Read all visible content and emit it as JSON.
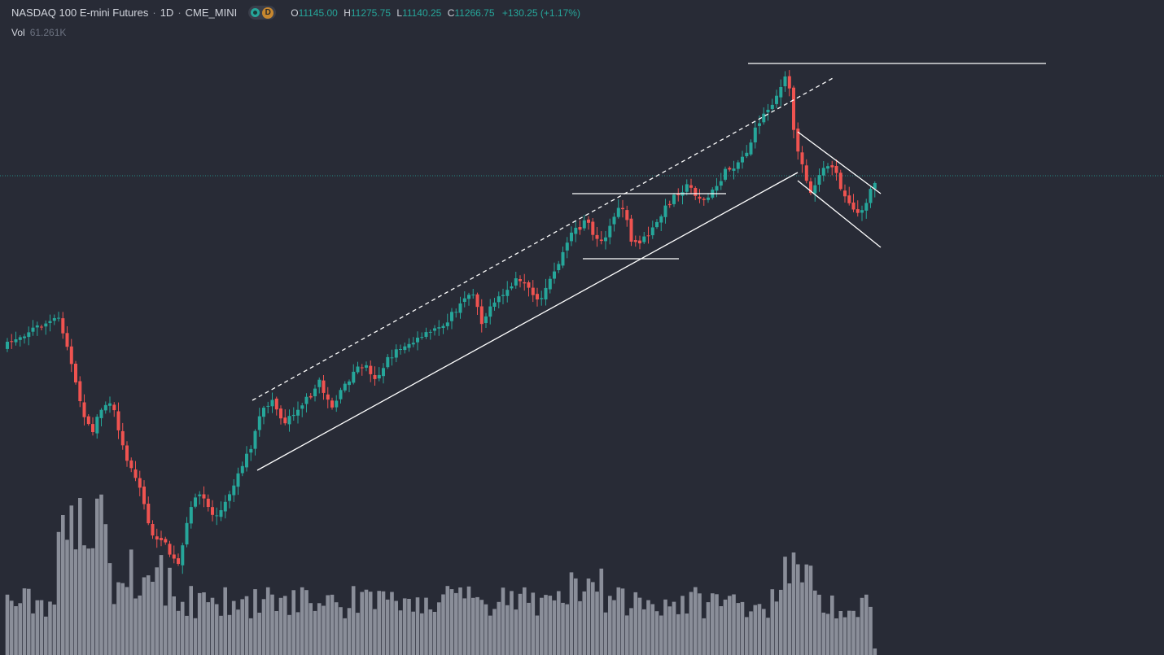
{
  "header": {
    "symbol": "NASDAQ 100 E-mini Futures",
    "interval": "1D",
    "exchange": "CME_MINI",
    "badge_letter": "D",
    "open_key": "O",
    "open": "11145.00",
    "high_key": "H",
    "high": "11275.75",
    "low_key": "L",
    "low": "11140.25",
    "close_key": "C",
    "close": "11266.75",
    "change": "+130.25 (+1.17%)"
  },
  "volume": {
    "label": "Vol",
    "value": "61.261K"
  },
  "colors": {
    "background": "#282b36",
    "up": "#26a69a",
    "down": "#ef5350",
    "volume": "#8a8e99",
    "drawing": "#ffffff",
    "price_line": "#26a69a"
  },
  "chart_data": {
    "type": "candlestick",
    "title": "NASDAQ 100 E-mini Futures",
    "interval": "1D",
    "grid": false,
    "last_close": 11266.75,
    "y_axis_labels": false,
    "annotations": [
      "dashed upper channel line",
      "solid lower trendline",
      "horizontal range top",
      "horizontal range bottom",
      "horizontal line at peak high",
      "descending channel upper line",
      "descending channel lower line"
    ]
  }
}
